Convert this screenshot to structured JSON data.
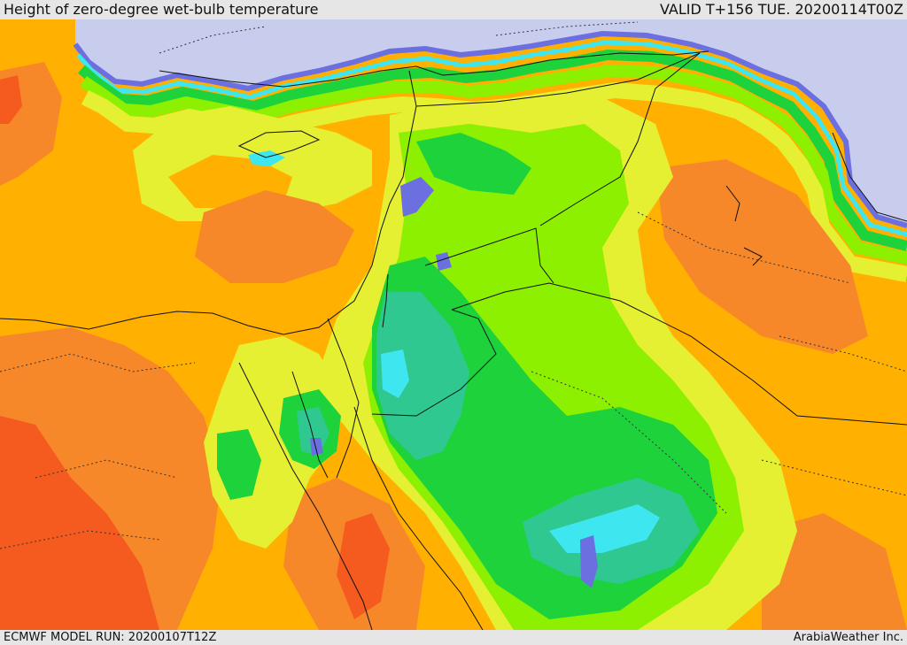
{
  "header": {
    "title": "Height of zero-degree wet-bulb temperature",
    "valid": "VALID T+156 TUE. 20200114T00Z"
  },
  "footer": {
    "model_run": "ECMWF MODEL RUN: 20200107T12Z",
    "credit": "ArabiaWeather Inc."
  },
  "map": {
    "palette": {
      "sea_cold": "#c8cdee",
      "blue": "#6b6fe0",
      "purple": "#8a6fd8",
      "cyan": "#3ee6f0",
      "teal": "#2ec890",
      "green": "#1ed23c",
      "lime": "#8cf000",
      "yellow": "#e6f032",
      "orange": "#ffb000",
      "dark_orange": "#f7882a",
      "red_orange": "#f55a1e"
    }
  }
}
